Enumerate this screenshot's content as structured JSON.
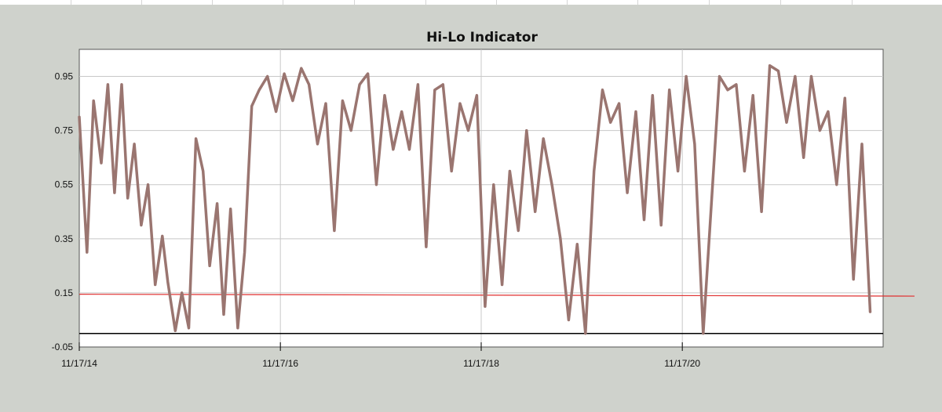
{
  "chart_data": {
    "type": "line",
    "title": "Hi-Lo Indicator",
    "xlabel": "",
    "ylabel": "",
    "x_tick_labels": [
      "11/17/14",
      "11/17/16",
      "11/17/18",
      "11/17/20"
    ],
    "x_range": [
      "11/17/14",
      "11/17/22"
    ],
    "y_tick_labels": [
      "0.95",
      "0.75",
      "0.55",
      "0.35",
      "0.15",
      "-0.05"
    ],
    "y_ticks": [
      0.95,
      0.75,
      0.55,
      0.35,
      0.15,
      -0.05
    ],
    "ylim": [
      -0.05,
      1.05
    ],
    "grid": true,
    "legend": "none",
    "colors": {
      "series": "#9a7570",
      "reference": "#e03030",
      "axis": "#000000",
      "grid": "#c8c8c8"
    },
    "reference_line": {
      "y_start": 0.145,
      "y_end": 0.138
    },
    "series": [
      {
        "x": [
          "2014-11-17",
          "2014-12-15",
          "2015-01-08",
          "2015-02-05",
          "2015-03-01",
          "2015-03-25",
          "2015-04-20",
          "2015-05-12",
          "2015-06-05",
          "2015-06-30",
          "2015-07-25",
          "2015-08-20",
          "2015-09-15",
          "2015-10-05",
          "2015-11-01",
          "2015-11-25",
          "2015-12-20",
          "2016-01-15",
          "2016-02-10",
          "2016-03-05",
          "2016-04-01",
          "2016-04-25",
          "2016-05-20",
          "2016-06-15",
          "2016-07-10",
          "2016-08-05",
          "2016-09-01",
          "2016-10-01",
          "2016-11-01",
          "2016-12-01",
          "2017-01-01",
          "2017-02-01",
          "2017-03-01",
          "2017-04-01",
          "2017-05-01",
          "2017-06-01",
          "2017-07-01",
          "2017-08-01",
          "2017-09-01",
          "2017-10-01",
          "2017-11-01",
          "2017-12-01",
          "2018-01-01",
          "2018-02-01",
          "2018-03-01",
          "2018-04-01",
          "2018-05-01",
          "2018-06-01",
          "2018-07-01",
          "2018-08-01",
          "2018-09-01",
          "2018-10-01",
          "2018-11-01",
          "2018-12-01",
          "2019-01-01",
          "2019-02-01",
          "2019-03-01",
          "2019-04-01",
          "2019-05-01",
          "2019-06-01",
          "2019-07-01",
          "2019-08-01",
          "2019-09-01",
          "2019-10-01",
          "2019-11-01",
          "2019-12-01",
          "2020-01-01",
          "2020-02-01",
          "2020-03-01",
          "2020-04-01",
          "2020-05-01",
          "2020-06-01",
          "2020-07-01",
          "2020-08-01",
          "2020-09-01",
          "2020-10-01",
          "2020-11-01",
          "2020-12-01",
          "2021-01-01",
          "2021-02-01",
          "2021-03-01",
          "2021-04-01",
          "2021-05-01",
          "2021-06-01",
          "2021-07-01",
          "2021-08-01",
          "2021-09-01",
          "2021-10-01",
          "2021-11-01",
          "2021-12-01",
          "2022-01-01",
          "2022-02-01",
          "2022-03-01",
          "2022-04-01",
          "2022-05-01",
          "2022-06-01",
          "2022-07-01",
          "2022-08-01",
          "2022-09-01",
          "2022-10-01"
        ],
        "y": [
          0.8,
          0.3,
          0.86,
          0.63,
          0.92,
          0.52,
          0.92,
          0.5,
          0.7,
          0.4,
          0.55,
          0.18,
          0.36,
          0.19,
          0.01,
          0.15,
          0.02,
          0.72,
          0.6,
          0.25,
          0.48,
          0.07,
          0.46,
          0.02,
          0.3,
          0.84,
          0.9,
          0.95,
          0.82,
          0.96,
          0.86,
          0.98,
          0.92,
          0.7,
          0.85,
          0.38,
          0.86,
          0.75,
          0.92,
          0.96,
          0.55,
          0.88,
          0.68,
          0.82,
          0.68,
          0.92,
          0.32,
          0.9,
          0.92,
          0.6,
          0.85,
          0.75,
          0.88,
          0.1,
          0.55,
          0.18,
          0.6,
          0.38,
          0.75,
          0.45,
          0.72,
          0.55,
          0.35,
          0.05,
          0.33,
          0.0,
          0.6,
          0.9,
          0.78,
          0.85,
          0.52,
          0.82,
          0.42,
          0.88,
          0.4,
          0.9,
          0.6,
          0.95,
          0.7,
          0.0,
          0.45,
          0.95,
          0.9,
          0.92,
          0.6,
          0.88,
          0.45,
          0.99,
          0.97,
          0.78,
          0.95,
          0.65,
          0.95,
          0.75,
          0.82,
          0.55,
          0.87,
          0.2,
          0.7,
          0.08
        ]
      }
    ]
  }
}
